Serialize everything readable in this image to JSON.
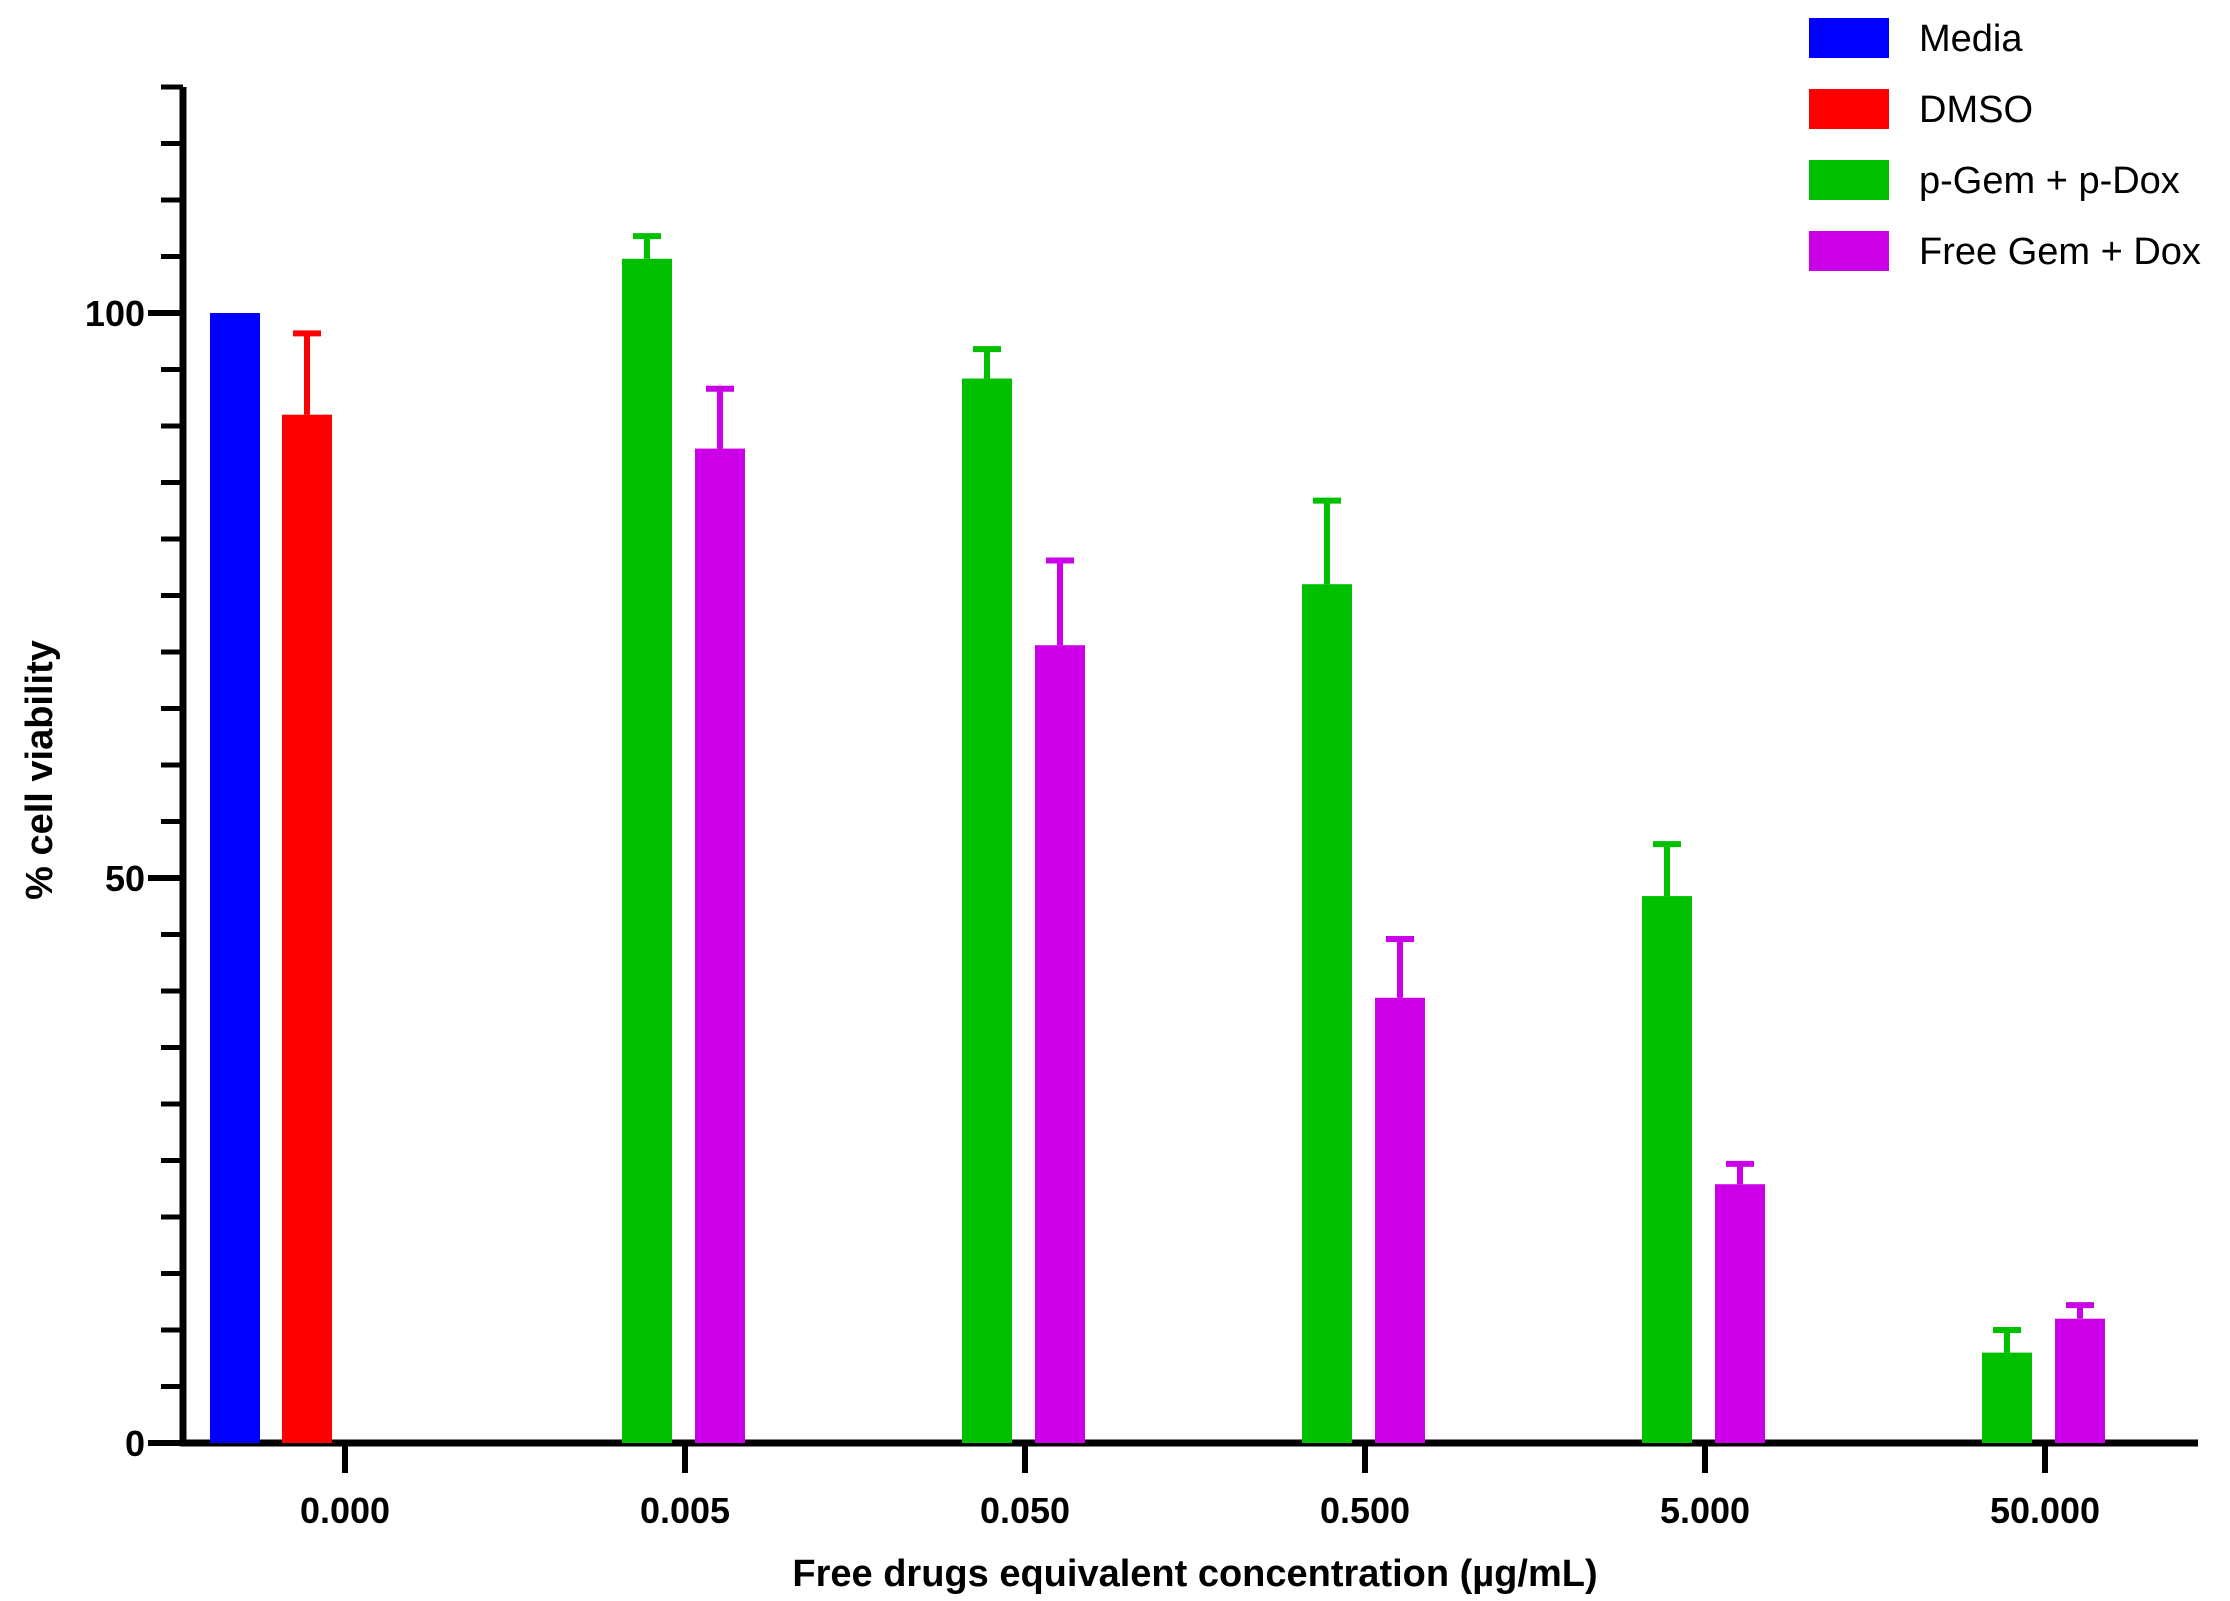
{
  "chart_data": {
    "type": "bar",
    "title": "",
    "xlabel": "Free drugs equivalent concentration (µg/mL)",
    "ylabel": "% cell viability",
    "ylim": [
      0,
      120
    ],
    "yticks": [
      0,
      50,
      100
    ],
    "yminor_step": 5,
    "categories": [
      "0.000",
      "0.005",
      "0.050",
      "0.500",
      "5.000",
      "50.000"
    ],
    "legend_position": "top-right",
    "series": [
      {
        "name": "Media",
        "color": "#0000FF",
        "values": [
          100,
          null,
          null,
          null,
          null,
          null
        ],
        "errors": [
          0,
          null,
          null,
          null,
          null,
          null
        ]
      },
      {
        "name": "DMSO",
        "color": "#FF0000",
        "values": [
          91,
          null,
          null,
          null,
          null,
          null
        ],
        "errors": [
          7.2,
          null,
          null,
          null,
          null,
          null
        ]
      },
      {
        "name": "p-Gem + p-Dox",
        "color": "#00C000",
        "values": [
          null,
          104.8,
          94.2,
          76,
          48.4,
          8
        ],
        "errors": [
          null,
          2,
          2.6,
          7.4,
          4.6,
          2
        ]
      },
      {
        "name": "Free Gem + Dox",
        "color": "#CC00E8",
        "values": [
          null,
          88,
          70.6,
          39.4,
          22.9,
          11
        ],
        "errors": [
          null,
          5.3,
          7.5,
          5.2,
          1.8,
          1.2
        ]
      }
    ]
  }
}
